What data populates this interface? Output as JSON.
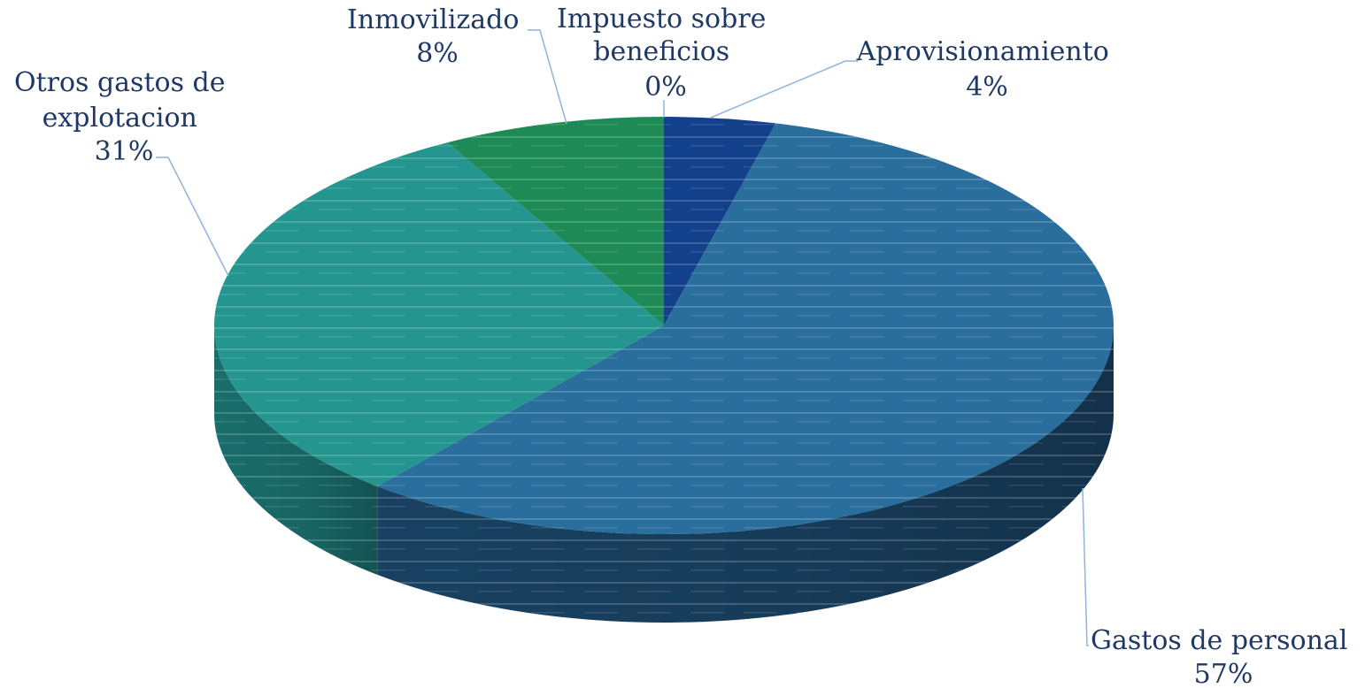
{
  "chart_data": {
    "type": "pie",
    "style": "3d",
    "start_angle_deg": -90,
    "direction": "clockwise",
    "slices": [
      {
        "label": "Aprovisionamiento",
        "value_label": "4%",
        "value": 4,
        "color": "#12408a",
        "side_color": "#0c2b5e"
      },
      {
        "label": "Gastos de personal",
        "value_label": "57%",
        "value": 57,
        "color": "#2a6e9d",
        "side_color": "#1a4466"
      },
      {
        "label": "Otros gastos de explotacion",
        "value_label": "31%",
        "value": 31,
        "color": "#25958f",
        "side_color": "#1a7371"
      },
      {
        "label": "Inmovilizado",
        "value_label": "8%",
        "value": 8,
        "color": "#1e8a56",
        "side_color": "#136640"
      },
      {
        "label": "Impuesto sobre beneficios",
        "value_label": "0%",
        "value": 0,
        "color": "#2f6f9f",
        "side_color": "#1f4d73"
      }
    ],
    "legend": "none"
  }
}
